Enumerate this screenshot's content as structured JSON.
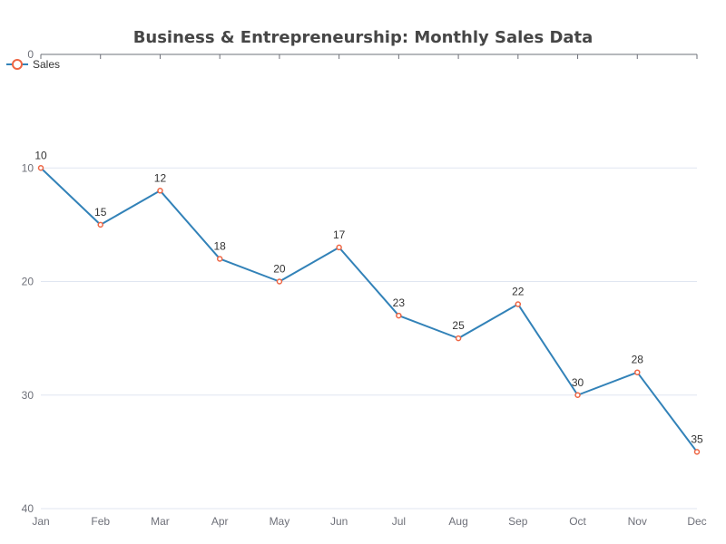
{
  "chart_data": {
    "type": "line",
    "title": "Business & Entrepreneurship: Monthly Sales Data",
    "categories": [
      "Jan",
      "Feb",
      "Mar",
      "Apr",
      "May",
      "Jun",
      "Jul",
      "Aug",
      "Sep",
      "Oct",
      "Nov",
      "Dec"
    ],
    "series": [
      {
        "name": "Sales",
        "values": [
          10,
          15,
          12,
          18,
          20,
          17,
          23,
          25,
          22,
          30,
          28,
          35
        ],
        "line_color": "#3282b8",
        "marker_color": "#ee6644"
      }
    ],
    "yticks": [
      "0",
      "10",
      "20",
      "30",
      "40"
    ],
    "ylim": [
      0,
      40
    ],
    "y_inverted": true,
    "x_axis_position": "top",
    "legend": "top-left",
    "grid": true
  }
}
